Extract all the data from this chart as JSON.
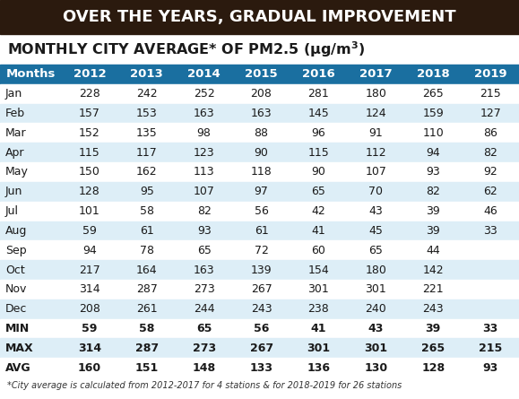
{
  "title_banner": "OVER THE YEARS, GRADUAL IMPROVEMENT",
  "banner_bg": "#2b1a0e",
  "banner_text_color": "#ffffff",
  "header_bg": "#1a6fa0",
  "header_text_color": "#ffffff",
  "row_alt_color": "#ddeef7",
  "row_plain_color": "#ffffff",
  "footer_note": "*City average is calculated from 2012-2017 for 4 stations & for 2018-2019 for 26 stations",
  "col_headers": [
    "Months",
    "2012",
    "2013",
    "2014",
    "2015",
    "2016",
    "2017",
    "2018",
    "2019"
  ],
  "rows": [
    [
      "Jan",
      "228",
      "242",
      "252",
      "208",
      "281",
      "180",
      "265",
      "215"
    ],
    [
      "Feb",
      "157",
      "153",
      "163",
      "163",
      "145",
      "124",
      "159",
      "127"
    ],
    [
      "Mar",
      "152",
      "135",
      "98",
      "88",
      "96",
      "91",
      "110",
      "86"
    ],
    [
      "Apr",
      "115",
      "117",
      "123",
      "90",
      "115",
      "112",
      "94",
      "82"
    ],
    [
      "May",
      "150",
      "162",
      "113",
      "118",
      "90",
      "107",
      "93",
      "92"
    ],
    [
      "Jun",
      "128",
      "95",
      "107",
      "97",
      "65",
      "70",
      "82",
      "62"
    ],
    [
      "Jul",
      "101",
      "58",
      "82",
      "56",
      "42",
      "43",
      "39",
      "46"
    ],
    [
      "Aug",
      "59",
      "61",
      "93",
      "61",
      "41",
      "45",
      "39",
      "33"
    ],
    [
      "Sep",
      "94",
      "78",
      "65",
      "72",
      "60",
      "65",
      "44",
      ""
    ],
    [
      "Oct",
      "217",
      "164",
      "163",
      "139",
      "154",
      "180",
      "142",
      ""
    ],
    [
      "Nov",
      "314",
      "287",
      "273",
      "267",
      "301",
      "301",
      "221",
      ""
    ],
    [
      "Dec",
      "208",
      "261",
      "244",
      "243",
      "238",
      "240",
      "243",
      ""
    ],
    [
      "MIN",
      "59",
      "58",
      "65",
      "56",
      "41",
      "43",
      "39",
      "33"
    ],
    [
      "MAX",
      "314",
      "287",
      "273",
      "267",
      "301",
      "301",
      "265",
      "215"
    ],
    [
      "AVG",
      "160",
      "151",
      "148",
      "133",
      "136",
      "130",
      "128",
      "93"
    ]
  ],
  "summary_rows": [
    "MIN",
    "MAX",
    "AVG"
  ],
  "fig_width": 5.79,
  "fig_height": 4.45,
  "dpi": 100
}
